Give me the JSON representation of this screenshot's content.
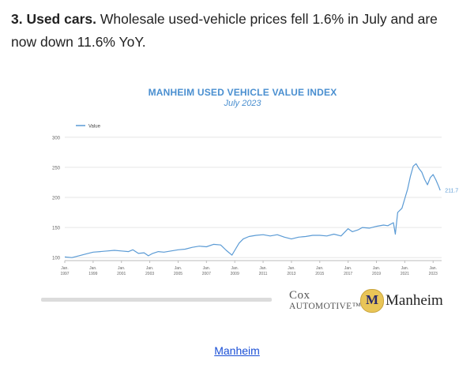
{
  "intro": {
    "heading": "3. Used cars.",
    "body": "Wholesale used-vehicle prices fell 1.6% in July and are now down 11.6% YoY."
  },
  "chart_data": {
    "type": "line",
    "title": "MANHEIM USED VEHICLE VALUE INDEX",
    "subtitle": "July 2023",
    "legend": {
      "label": "Value",
      "placement": "top-left"
    },
    "ylim": [
      95,
      305
    ],
    "yticks": [
      100,
      150,
      200,
      250,
      300
    ],
    "xlim": [
      1997.0,
      2023.6
    ],
    "xticks": [
      {
        "line1": "Jan.",
        "line2": "1997",
        "x": 1997
      },
      {
        "line1": "Jan.",
        "line2": "1999",
        "x": 1999
      },
      {
        "line1": "Jan.",
        "line2": "2001",
        "x": 2001
      },
      {
        "line1": "Jan.",
        "line2": "2003",
        "x": 2003
      },
      {
        "line1": "Jan.",
        "line2": "2005",
        "x": 2005
      },
      {
        "line1": "Jan.",
        "line2": "2007",
        "x": 2007
      },
      {
        "line1": "Jan.",
        "line2": "2009",
        "x": 2009
      },
      {
        "line1": "Jan.",
        "line2": "2011",
        "x": 2011
      },
      {
        "line1": "Jan.",
        "line2": "2013",
        "x": 2013
      },
      {
        "line1": "Jan.",
        "line2": "2015",
        "x": 2015
      },
      {
        "line1": "Jan.",
        "line2": "2017",
        "x": 2017
      },
      {
        "line1": "Jan.",
        "line2": "2019",
        "x": 2019
      },
      {
        "line1": "Jan.",
        "line2": "2021",
        "x": 2021
      },
      {
        "line1": "Jan.",
        "line2": "2023",
        "x": 2023
      }
    ],
    "grid": true,
    "color": "#5b9bd5",
    "last_label": "211.7",
    "series": [
      {
        "name": "Value",
        "x": [
          1997.0,
          1997.5,
          1998.0,
          1998.5,
          1999.0,
          1999.5,
          2000.0,
          2000.5,
          2001.0,
          2001.5,
          2001.8,
          2002.2,
          2002.6,
          2002.9,
          2003.2,
          2003.6,
          2004.0,
          2004.5,
          2005.0,
          2005.5,
          2006.0,
          2006.5,
          2007.0,
          2007.5,
          2008.0,
          2008.4,
          2008.8,
          2009.0,
          2009.3,
          2009.6,
          2010.0,
          2010.5,
          2011.0,
          2011.5,
          2012.0,
          2012.5,
          2013.0,
          2013.5,
          2014.0,
          2014.5,
          2015.0,
          2015.5,
          2016.0,
          2016.5,
          2017.0,
          2017.3,
          2017.7,
          2018.0,
          2018.5,
          2019.0,
          2019.5,
          2019.8,
          2020.2,
          2020.33,
          2020.5,
          2020.8,
          2021.0,
          2021.2,
          2021.4,
          2021.6,
          2021.8,
          2022.0,
          2022.2,
          2022.4,
          2022.6,
          2022.8,
          2023.0,
          2023.2,
          2023.4,
          2023.5
        ],
        "values": [
          101,
          100,
          103,
          106,
          109,
          110,
          111,
          112,
          111,
          110,
          113,
          107,
          108,
          103,
          107,
          110,
          109,
          111,
          113,
          114,
          117,
          119,
          118,
          122,
          121,
          112,
          104,
          112,
          124,
          131,
          135,
          137,
          138,
          136,
          138,
          134,
          131,
          134,
          135,
          137,
          137,
          136,
          139,
          136,
          148,
          143,
          146,
          150,
          149,
          152,
          154,
          153,
          158,
          139,
          175,
          182,
          198,
          214,
          235,
          252,
          256,
          248,
          242,
          230,
          221,
          233,
          238,
          229,
          218,
          211.7
        ]
      }
    ]
  },
  "logos": {
    "cox_line1": "Cox",
    "cox_line2": "AUTOMOTIVE™",
    "manheim_badge": "M",
    "manheim_word": "Manheim"
  },
  "source_link": {
    "label": "Manheim"
  }
}
